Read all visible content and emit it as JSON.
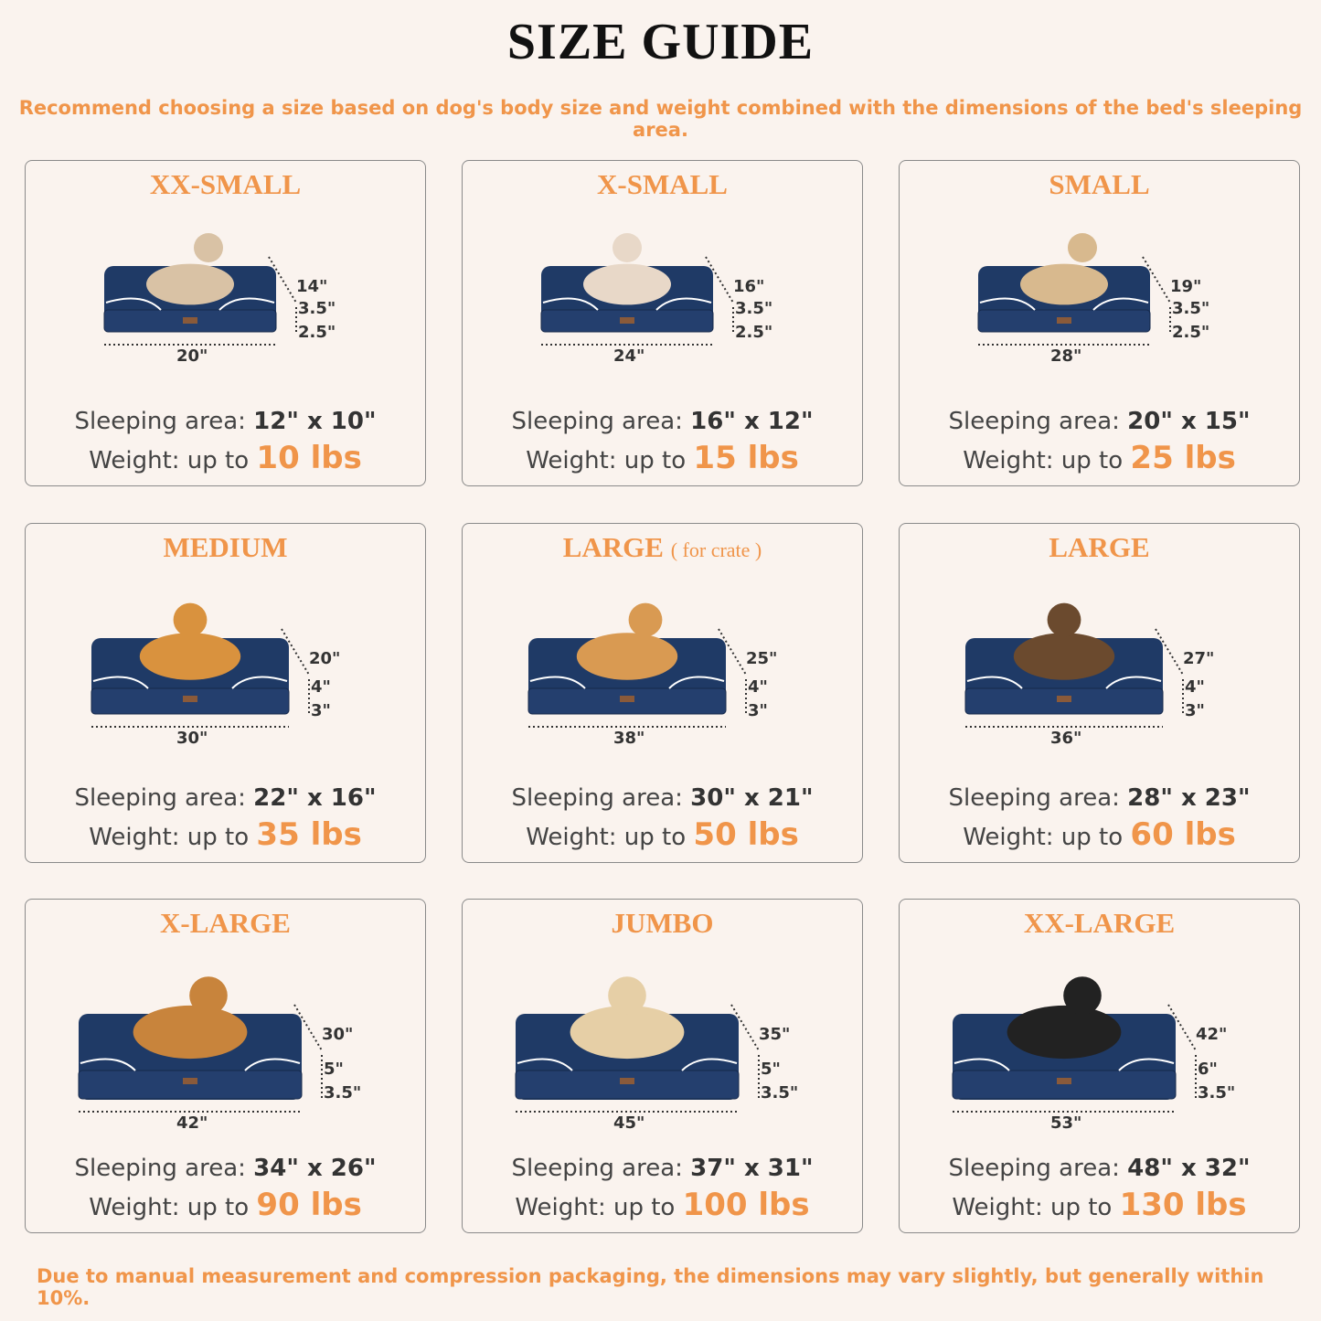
{
  "title": "SIZE GUIDE",
  "subtitle": "Recommend choosing a size based on dog's body size and weight combined with the dimensions of the bed's sleeping area.",
  "footer": "Due to manual measurement and compression packaging, the dimensions may vary slightly, but generally within 10%.",
  "colors": {
    "accent": "#f0954a",
    "bed": "#1f3a66",
    "background": "#faf3ee"
  },
  "labels": {
    "sleeping_area": "Sleeping area:",
    "weight": "Weight: up to"
  },
  "sizes": [
    {
      "name": "XX-SMALL",
      "note": "",
      "pet": "cat",
      "depth": "14\"",
      "h1": "3.5\"",
      "h2": "2.5\"",
      "length": "20\"",
      "sleeping_area": "12\" x 10\"",
      "weight": "10 lbs"
    },
    {
      "name": "X-SMALL",
      "note": "",
      "pet": "dog",
      "depth": "16\"",
      "h1": "3.5\"",
      "h2": "2.5\"",
      "length": "24\"",
      "sleeping_area": "16\" x 12\"",
      "weight": "15 lbs"
    },
    {
      "name": "SMALL",
      "note": "",
      "pet": "dog",
      "depth": "19\"",
      "h1": "3.5\"",
      "h2": "2.5\"",
      "length": "28\"",
      "sleeping_area": "20\" x 15\"",
      "weight": "25 lbs"
    },
    {
      "name": "MEDIUM",
      "note": "",
      "pet": "dog",
      "depth": "20\"",
      "h1": "4\"",
      "h2": "3\"",
      "length": "30\"",
      "sleeping_area": "22\" x 16\"",
      "weight": "35 lbs"
    },
    {
      "name": "LARGE",
      "note": "( for crate )",
      "pet": "dog",
      "depth": "25\"",
      "h1": "4\"",
      "h2": "3\"",
      "length": "38\"",
      "sleeping_area": "30\" x 21\"",
      "weight": "50 lbs"
    },
    {
      "name": "LARGE",
      "note": "",
      "pet": "dog",
      "depth": "27\"",
      "h1": "4\"",
      "h2": "3\"",
      "length": "36\"",
      "sleeping_area": "28\" x 23\"",
      "weight": "60 lbs"
    },
    {
      "name": "X-LARGE",
      "note": "",
      "pet": "dog",
      "depth": "30\"",
      "h1": "5\"",
      "h2": "3.5\"",
      "length": "42\"",
      "sleeping_area": "34\" x 26\"",
      "weight": "90 lbs"
    },
    {
      "name": "JUMBO",
      "note": "",
      "pet": "dog",
      "depth": "35\"",
      "h1": "5\"",
      "h2": "3.5\"",
      "length": "45\"",
      "sleeping_area": "37\" x 31\"",
      "weight": "100 lbs"
    },
    {
      "name": "XX-LARGE",
      "note": "",
      "pet": "dog",
      "depth": "42\"",
      "h1": "6\"",
      "h2": "3.5\"",
      "length": "53\"",
      "sleeping_area": "48\" x 32\"",
      "weight": "130 lbs"
    }
  ]
}
